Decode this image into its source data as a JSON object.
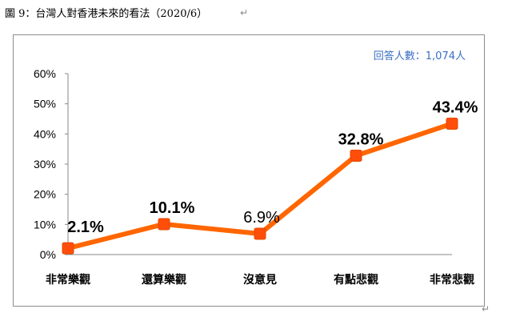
{
  "header": {
    "title": "圖 9：台灣人對香港未來的看法（2020/6）",
    "paragraph_mark": "↵"
  },
  "colors": {
    "line": "#ff6600",
    "marker": "#ff4d0a",
    "note": "#3a6fc4",
    "axis": "#888888",
    "frame": "#8c8c8c"
  },
  "chart_data": {
    "type": "line",
    "title": "",
    "respondents_note": "回答人數：1,074人",
    "categories": [
      "非常樂觀",
      "還算樂觀",
      "沒意見",
      "有點悲觀",
      "非常悲觀"
    ],
    "series": [
      {
        "values": [
          2.1,
          10.1,
          6.9,
          32.8,
          43.4
        ]
      }
    ],
    "data_labels": [
      "2.1%",
      "10.1%",
      "6.9%",
      "32.8%",
      "43.4%"
    ],
    "data_label_bold": [
      true,
      true,
      false,
      true,
      true
    ],
    "yticks": [
      "0%",
      "10%",
      "20%",
      "30%",
      "40%",
      "50%",
      "60%"
    ],
    "ytick_values": [
      0,
      10,
      20,
      30,
      40,
      50,
      60
    ],
    "ylim": [
      0,
      60
    ],
    "xlabel": "",
    "ylabel": "",
    "grid": false,
    "legend": "none"
  }
}
